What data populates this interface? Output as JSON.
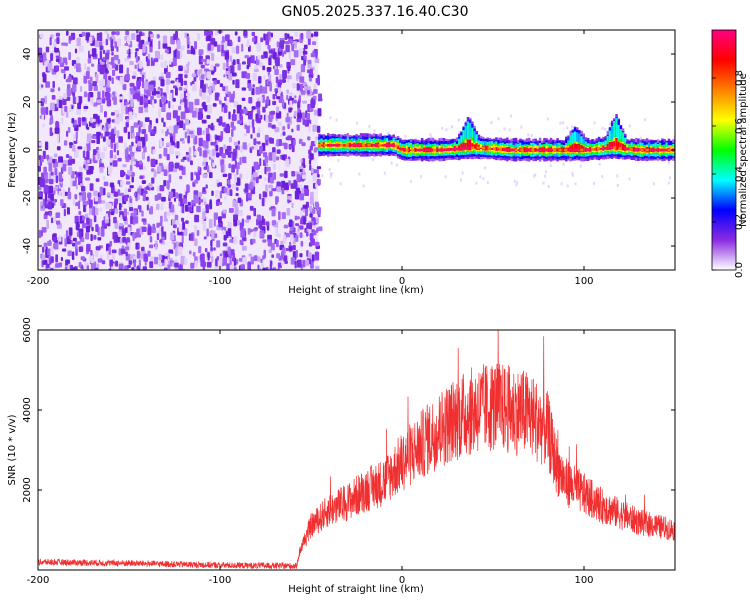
{
  "title": "GN05.2025.337.16.40.C30",
  "chart_data": [
    {
      "type": "heatmap",
      "xlabel": "Height of straight line (km)",
      "ylabel": "Frequency (Hz)",
      "xlim": [
        -200,
        150
      ],
      "ylim": [
        -50,
        50
      ],
      "xticks": [
        -200,
        -100,
        0,
        100
      ],
      "yticks": [
        -40,
        -20,
        0,
        20,
        40
      ],
      "colorbar": {
        "label": "Normalized spectral amplitude",
        "range": [
          0,
          1
        ],
        "ticks": [
          0.0,
          0.2,
          0.4,
          0.6,
          0.8
        ],
        "colormap": [
          "#ffffff",
          "#8a2be2",
          "#0000ff",
          "#00ffff",
          "#00ff00",
          "#ffff00",
          "#ff8000",
          "#ff0000",
          "#ff0080"
        ]
      },
      "noise_region_x": [
        -200,
        -46
      ],
      "ridge": [
        {
          "x": -46,
          "freq": 2
        },
        {
          "x": -25,
          "freq": 2
        },
        {
          "x": -5,
          "freq": 2
        },
        {
          "x": 0,
          "freq": 0
        },
        {
          "x": 20,
          "freq": 0
        },
        {
          "x": 40,
          "freq": 1
        },
        {
          "x": 60,
          "freq": 0
        },
        {
          "x": 80,
          "freq": 0
        },
        {
          "x": 100,
          "freq": 0
        },
        {
          "x": 115,
          "freq": 1
        },
        {
          "x": 130,
          "freq": 0
        },
        {
          "x": 150,
          "freq": 0
        }
      ],
      "bursts": [
        {
          "x": 36,
          "freq": 9
        },
        {
          "x": 95,
          "freq": 6
        },
        {
          "x": 117,
          "freq": 10
        }
      ]
    },
    {
      "type": "line",
      "xlabel": "Height of straight line (km)",
      "ylabel": "SNR (10 * v/v)",
      "xlim": [
        -200,
        150
      ],
      "ylim": [
        0,
        6000
      ],
      "xticks": [
        -200,
        -100,
        0,
        100
      ],
      "yticks": [
        2000,
        4000,
        6000
      ],
      "color": "#f03030",
      "envelope": [
        {
          "x": -200,
          "y": 200
        },
        {
          "x": -150,
          "y": 170
        },
        {
          "x": -100,
          "y": 120
        },
        {
          "x": -58,
          "y": 100
        },
        {
          "x": -56,
          "y": 500
        },
        {
          "x": -50,
          "y": 1100
        },
        {
          "x": -40,
          "y": 1500
        },
        {
          "x": -30,
          "y": 1700
        },
        {
          "x": -20,
          "y": 2000
        },
        {
          "x": -10,
          "y": 2200
        },
        {
          "x": 0,
          "y": 2700
        },
        {
          "x": 10,
          "y": 3100
        },
        {
          "x": 20,
          "y": 3500
        },
        {
          "x": 30,
          "y": 3800
        },
        {
          "x": 40,
          "y": 4000
        },
        {
          "x": 50,
          "y": 4100
        },
        {
          "x": 60,
          "y": 4000
        },
        {
          "x": 70,
          "y": 3900
        },
        {
          "x": 80,
          "y": 3500
        },
        {
          "x": 85,
          "y": 2600
        },
        {
          "x": 90,
          "y": 2200
        },
        {
          "x": 100,
          "y": 1900
        },
        {
          "x": 110,
          "y": 1600
        },
        {
          "x": 120,
          "y": 1400
        },
        {
          "x": 130,
          "y": 1200
        },
        {
          "x": 140,
          "y": 1100
        },
        {
          "x": 150,
          "y": 1000
        }
      ]
    }
  ]
}
